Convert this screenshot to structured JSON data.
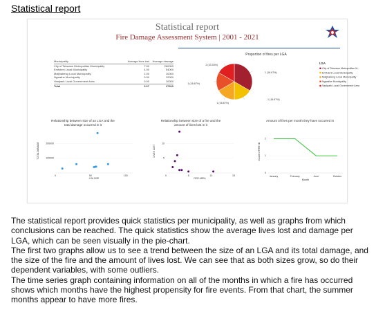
{
  "page": {
    "heading": "Statistical report",
    "paragraphs": [
      "The statistical report provides quick statistics per municipality, as well as graphs from which conclusions can be reached. The quick statistics show the average lives lost and damage per LGA, which can be seen visually in the pie-chart.",
      "The first two graphs allow us to see a trend between the size of an LGA and its total damage, and the size of the fire and the amount of lives lost. We can see that as both sizes grow, so do their dependent variables, with some outliers.",
      "The time series graph containing information on all of the months in which a fire has occurred shows which months have the highest propensity for fire events. From that chart, the summer months appear to have more fires."
    ]
  },
  "report": {
    "title": "Statistical report",
    "subtitle": "Fire Damage Assessment System | 2001 - 2021",
    "logo_icon": "fire-service-emblem-icon",
    "table": {
      "headers": [
        "Municipality",
        "Average lives lost",
        "Average damage"
      ],
      "rows": [
        [
          "City of Tshwane Metropolitan Municipality",
          "7.00",
          "260000"
        ],
        [
          "Emfuleni Local Municipality",
          "4.00",
          "54000"
        ],
        [
          "Matjhabeng Local Municipality",
          "2.00",
          "10000"
        ],
        [
          "Ngwathe Municipality",
          "0.00",
          "12000"
        ],
        [
          "Vaalpark Local Government Area",
          "0.00",
          "10000"
        ]
      ],
      "total": [
        "Total",
        "3.67",
        "27600"
      ]
    }
  },
  "colors": {
    "accent_red": "#9a2a2a",
    "line_green": "#3fbf3f",
    "point_blue": "#3399e6",
    "point_purple": "#5a0a6a"
  },
  "chart_data": [
    {
      "type": "pie",
      "title": "Proportion of fires per LGA",
      "legend_title": "LGA",
      "legend_position": "right",
      "slice_labels": [
        "1 (16.67%)",
        "2 (33.33%)",
        "1 (16.67%)",
        "1 (16.67%)",
        "1 (16.67%)"
      ],
      "slices": [
        {
          "name": "City of Tshwane Metropolitan M...",
          "value": 2,
          "color": "#a3202e"
        },
        {
          "name": "Emfuleni Local Municipality",
          "value": 1,
          "color": "#f2c200"
        },
        {
          "name": "Matjhabeng Local Municipality",
          "value": 1,
          "color": "#f5a623"
        },
        {
          "name": "Ngwathe Municipality",
          "value": 1,
          "color": "#e8502a"
        },
        {
          "name": "Vaalpark Local Government Area",
          "value": 1,
          "color": "#e02020"
        }
      ]
    },
    {
      "type": "scatter",
      "title": [
        "Relationship between size of an LGA and the",
        "total damage occurred in it"
      ],
      "xlabel": "LGA SIZE",
      "ylabel": "TOTAL DAMAGE",
      "xlim": [
        0,
        110
      ],
      "ylim": [
        0,
        300000
      ],
      "xticks": [
        "0",
        "50",
        "100"
      ],
      "yticks": [
        "100000",
        "200000"
      ],
      "color": "#3399e6",
      "points": [
        [
          10,
          30000
        ],
        [
          30,
          60000
        ],
        [
          55,
          40000
        ],
        [
          57,
          42000
        ],
        [
          58,
          43000
        ],
        [
          75,
          60000
        ],
        [
          60,
          270000
        ]
      ]
    },
    {
      "type": "scatter",
      "title": [
        "Relationship between size of a fire and the",
        "amount of lives lost in it"
      ],
      "xlabel": "FIRE AREA",
      "ylabel": "LIVES LOST",
      "xlim": [
        0,
        15
      ],
      "ylim": [
        0,
        15
      ],
      "xticks": [
        "0",
        "5",
        "10",
        "15"
      ],
      "yticks": [
        "5",
        "10"
      ],
      "color": "#5a0a6a",
      "points": [
        [
          1.5,
          2
        ],
        [
          2,
          4
        ],
        [
          2.5,
          6
        ],
        [
          3,
          1
        ],
        [
          3.5,
          1
        ],
        [
          5,
          0.5
        ],
        [
          10.5,
          0.5
        ],
        [
          3,
          14
        ]
      ]
    },
    {
      "type": "line",
      "title": "Amount of fires per month they have occurred in",
      "xlabel": "Month",
      "ylabel": "Count of FIRE ID",
      "categories": [
        "January",
        "February",
        "June",
        "October"
      ],
      "values": [
        2,
        2,
        1,
        1
      ],
      "ylim": [
        0,
        2.5
      ],
      "yticks": [
        "0",
        "1",
        "2"
      ],
      "color": "#3fbf3f"
    }
  ]
}
